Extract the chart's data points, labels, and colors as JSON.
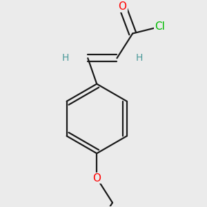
{
  "bg_color": "#ebebeb",
  "bond_color": "#1a1a1a",
  "bond_width": 1.6,
  "atom_colors": {
    "O": "#ff0000",
    "Cl": "#00bb00",
    "H": "#4a9999",
    "C": "#1a1a1a"
  },
  "font_size_atom": 11,
  "font_size_H": 10,
  "figsize": [
    3.0,
    3.0
  ],
  "dpi": 100
}
